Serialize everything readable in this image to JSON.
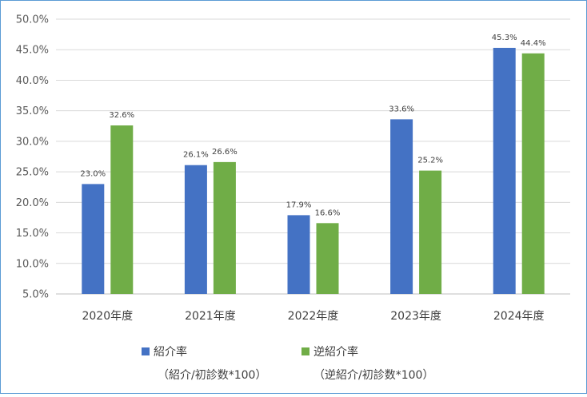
{
  "chart_data": {
    "type": "bar",
    "title": "",
    "xlabel": "",
    "ylabel": "",
    "categories": [
      "2020年度",
      "2021年度",
      "2022年度",
      "2023年度",
      "2024年度"
    ],
    "ylim": [
      5.0,
      50.0
    ],
    "yticks": [
      5.0,
      10.0,
      15.0,
      20.0,
      25.0,
      30.0,
      35.0,
      40.0,
      45.0,
      50.0
    ],
    "ytick_labels": [
      "5.0%",
      "10.0%",
      "15.0%",
      "20.0%",
      "25.0%",
      "30.0%",
      "35.0%",
      "40.0%",
      "45.0%",
      "50.0%"
    ],
    "grid": true,
    "legend_position": "bottom",
    "series": [
      {
        "name": "紹介率",
        "note": "（紹介/初診数*100）",
        "color": "#4472c4",
        "values": [
          23.0,
          26.1,
          17.9,
          33.6,
          45.3
        ],
        "labels": [
          "23.0%",
          "26.1%",
          "17.9%",
          "33.6%",
          "45.3%"
        ]
      },
      {
        "name": "逆紹介率",
        "note": "（逆紹介/初診数*100）",
        "color": "#70ad47",
        "values": [
          32.6,
          26.6,
          16.6,
          25.2,
          44.4
        ],
        "labels": [
          "32.6%",
          "26.6%",
          "16.6%",
          "25.2%",
          "44.4%"
        ]
      }
    ]
  }
}
